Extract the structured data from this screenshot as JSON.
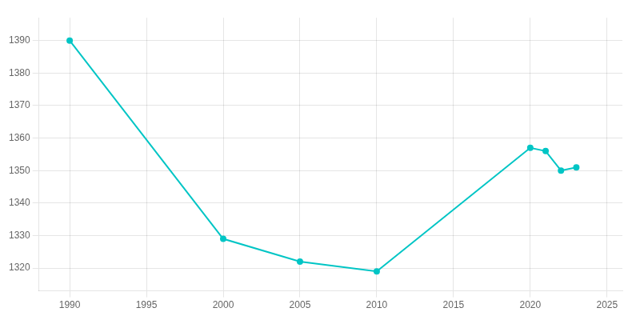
{
  "chart_data": {
    "type": "line",
    "x": [
      1990,
      2000,
      2005,
      2010,
      2020,
      2021,
      2022,
      2023
    ],
    "values": [
      1390,
      1329,
      1322,
      1319,
      1357,
      1356,
      1350,
      1351
    ],
    "color": "#00C5C5",
    "marker": "circle",
    "xlim": [
      1988,
      2026
    ],
    "ylim": [
      1313,
      1397
    ],
    "xticks": [
      1990,
      1995,
      2000,
      2005,
      2010,
      2015,
      2020,
      2025
    ],
    "yticks": [
      1320,
      1330,
      1340,
      1350,
      1360,
      1370,
      1380,
      1390
    ],
    "grid": true
  }
}
